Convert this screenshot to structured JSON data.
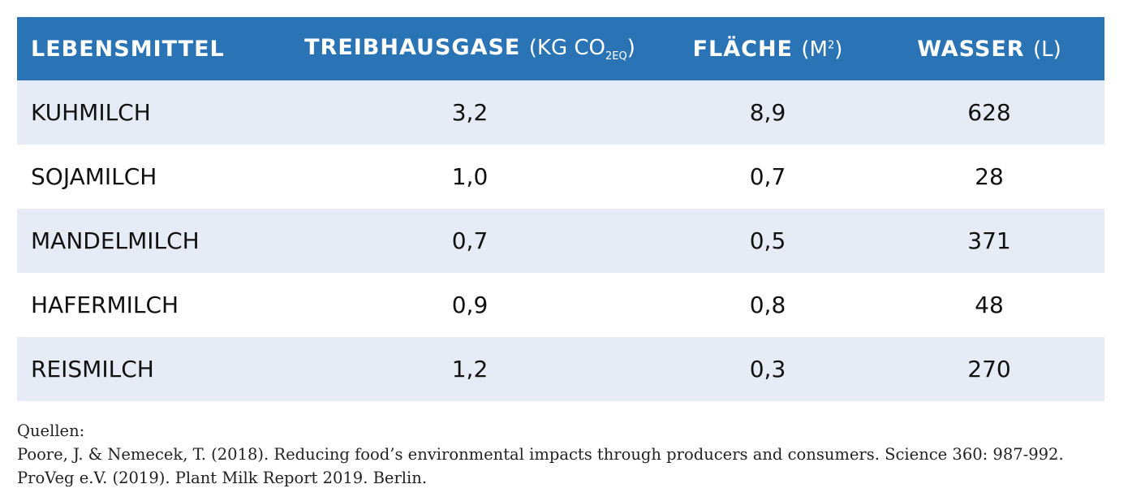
{
  "table": {
    "headers": {
      "food": "LEBENSMITTEL",
      "ghg": "TREIBHAUSGASE",
      "ghg_unit_pre": "(KG CO",
      "ghg_unit_sub": "2EQ",
      "ghg_unit_post": ")",
      "area": "FLÄCHE",
      "area_unit_pre": "(M",
      "area_unit_sup": "2",
      "area_unit_post": ")",
      "water": "WASSER",
      "water_unit": "(L)"
    },
    "rows": [
      {
        "food": "KUHMILCH",
        "ghg": "3,2",
        "area": "8,9",
        "water": "628"
      },
      {
        "food": "SOJAMILCH",
        "ghg": "1,0",
        "area": "0,7",
        "water": "28"
      },
      {
        "food": "MANDELMILCH",
        "ghg": "0,7",
        "area": "0,5",
        "water": "371"
      },
      {
        "food": "HAFERMILCH",
        "ghg": "0,9",
        "area": "0,8",
        "water": "48"
      },
      {
        "food": "REISMILCH",
        "ghg": "1,2",
        "area": "0,3",
        "water": "270"
      }
    ]
  },
  "sources": {
    "label": "Quellen:",
    "lines": [
      "Poore, J. & Nemecek, T. (2018). Reducing food’s environmental impacts through producers and consumers. Science 360: 987-992.",
      "ProVeg e.V. (2019). Plant Milk Report 2019. Berlin."
    ]
  },
  "colors": {
    "header_bg": "#2a74b5",
    "shaded_row": "#e7ebf5"
  }
}
